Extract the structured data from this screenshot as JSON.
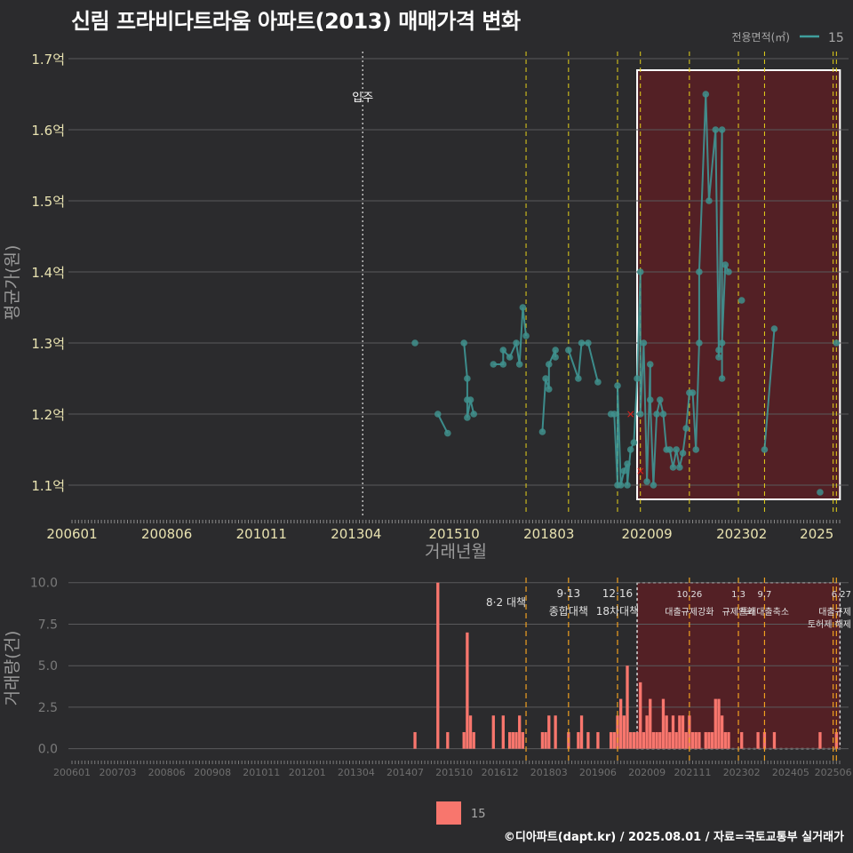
{
  "title": "신림 프라비다트라움 아파트(2013) 매매가격 변화",
  "footer": "©디아파트(dapt.kr) / 2025.08.01 / 자료=국토교통부 실거래가",
  "colors": {
    "background": "#2b2b2d",
    "grid": "#5a5a5c",
    "line": "#3f9e9c",
    "point": "#3f8f8c",
    "bar": "#f8766d",
    "highlight_fill": "#5a1f24",
    "event_line": "#e6d21a",
    "event_line_bottom": "#f0a020",
    "move_in_line": "#bdbdbd",
    "text_light": "#f2f2f2",
    "tick_label": "#e8e2b0",
    "axis_title": "#9a9a9a",
    "cancel_mark": "#e0201a"
  },
  "legend_top": {
    "title": "전용면적(㎡)",
    "label": "15"
  },
  "legend_bottom": {
    "label": "15"
  },
  "chart_data": [
    {
      "type": "line",
      "xlabel": "거래년월",
      "ylabel": "평균가(원)",
      "x_ticks": [
        "200601",
        "200806",
        "201011",
        "201304",
        "201510",
        "201803",
        "202009",
        "202302",
        "2025"
      ],
      "y_ticks": [
        "1.1억",
        "1.2억",
        "1.3억",
        "1.4억",
        "1.5억",
        "1.6억",
        "1.7억"
      ],
      "ylim": [
        1.06,
        1.71
      ],
      "unit": "억",
      "annotation": "입주",
      "annotation_date": "2013.06",
      "highlight_range": [
        "2020.06",
        "2025.07"
      ],
      "event_dates": [
        "2017.08",
        "2018.09",
        "2019.12",
        "2020.07",
        "2021.10",
        "2023.01",
        "2023.09",
        "2025.06",
        "2025.07"
      ],
      "series": [
        {
          "name": "15",
          "values": [
            {
              "x": "2014.10",
              "y": 1.3
            },
            {
              "x": "2015.05",
              "y": 1.2
            },
            {
              "x": "2015.08",
              "y": 1.173
            },
            {
              "x": "2016.01",
              "y": 1.3
            },
            {
              "x": "2016.02",
              "y": 1.25
            },
            {
              "x": "2016.02",
              "y": 1.22
            },
            {
              "x": "2016.02",
              "y": 1.195
            },
            {
              "x": "2016.03",
              "y": 1.22
            },
            {
              "x": "2016.04",
              "y": 1.2
            },
            {
              "x": "2016.10",
              "y": 1.27
            },
            {
              "x": "2017.01",
              "y": 1.27
            },
            {
              "x": "2017.01",
              "y": 1.29
            },
            {
              "x": "2017.03",
              "y": 1.28
            },
            {
              "x": "2017.05",
              "y": 1.3
            },
            {
              "x": "2017.06",
              "y": 1.27
            },
            {
              "x": "2017.07",
              "y": 1.35
            },
            {
              "x": "2017.08",
              "y": 1.31
            },
            {
              "x": "2018.01",
              "y": 1.175
            },
            {
              "x": "2018.02",
              "y": 1.25
            },
            {
              "x": "2018.03",
              "y": 1.235
            },
            {
              "x": "2018.03",
              "y": 1.27
            },
            {
              "x": "2018.05",
              "y": 1.29
            },
            {
              "x": "2018.05",
              "y": 1.28
            },
            {
              "x": "2018.09",
              "y": 1.29
            },
            {
              "x": "2018.12",
              "y": 1.25
            },
            {
              "x": "2019.01",
              "y": 1.3
            },
            {
              "x": "2019.03",
              "y": 1.3
            },
            {
              "x": "2019.06",
              "y": 1.245
            },
            {
              "x": "2019.10",
              "y": 1.2
            },
            {
              "x": "2019.11",
              "y": 1.2
            },
            {
              "x": "2019.12",
              "y": 1.1
            },
            {
              "x": "2019.12",
              "y": 1.24
            },
            {
              "x": "2020.01",
              "y": 1.1
            },
            {
              "x": "2020.02",
              "y": 1.12
            },
            {
              "x": "2020.03",
              "y": 1.13
            },
            {
              "x": "2020.03",
              "y": 1.1
            },
            {
              "x": "2020.04",
              "y": 1.15
            },
            {
              "x": "2020.05",
              "y": 1.16
            },
            {
              "x": "2020.06",
              "y": 1.25
            },
            {
              "x": "2020.07",
              "y": 1.4
            },
            {
              "x": "2020.07",
              "y": 1.2
            },
            {
              "x": "2020.08",
              "y": 1.3
            },
            {
              "x": "2020.09",
              "y": 1.105
            },
            {
              "x": "2020.10",
              "y": 1.27
            },
            {
              "x": "2020.10",
              "y": 1.22
            },
            {
              "x": "2020.11",
              "y": 1.1
            },
            {
              "x": "2020.12",
              "y": 1.2
            },
            {
              "x": "2021.01",
              "y": 1.22
            },
            {
              "x": "2021.02",
              "y": 1.2
            },
            {
              "x": "2021.03",
              "y": 1.15
            },
            {
              "x": "2021.04",
              "y": 1.15
            },
            {
              "x": "2021.05",
              "y": 1.125
            },
            {
              "x": "2021.06",
              "y": 1.15
            },
            {
              "x": "2021.07",
              "y": 1.125
            },
            {
              "x": "2021.08",
              "y": 1.145
            },
            {
              "x": "2021.09",
              "y": 1.18
            },
            {
              "x": "2021.10",
              "y": 1.23
            },
            {
              "x": "2021.11",
              "y": 1.23
            },
            {
              "x": "2021.12",
              "y": 1.15
            },
            {
              "x": "2022.01",
              "y": 1.3
            },
            {
              "x": "2022.01",
              "y": 1.4
            },
            {
              "x": "2022.03",
              "y": 1.65
            },
            {
              "x": "2022.04",
              "y": 1.5
            },
            {
              "x": "2022.06",
              "y": 1.6
            },
            {
              "x": "2022.07",
              "y": 1.28
            },
            {
              "x": "2022.07",
              "y": 1.29
            },
            {
              "x": "2022.08",
              "y": 1.6
            },
            {
              "x": "2022.08",
              "y": 1.25
            },
            {
              "x": "2022.08",
              "y": 1.3
            },
            {
              "x": "2022.09",
              "y": 1.41
            },
            {
              "x": "2022.10",
              "y": 1.4
            },
            {
              "x": "2023.02",
              "y": 1.36
            },
            {
              "x": "2023.09",
              "y": 1.15
            },
            {
              "x": "2023.12",
              "y": 1.32
            },
            {
              "x": "2025.02",
              "y": 1.09
            },
            {
              "x": "2025.07",
              "y": 1.3
            }
          ]
        }
      ],
      "cancelled": [
        {
          "x": "2020.04",
          "y": 1.2
        },
        {
          "x": "2020.07",
          "y": 1.12
        }
      ]
    },
    {
      "type": "bar",
      "xlabel": "",
      "ylabel": "거래량(건)",
      "x_ticks": [
        "200601",
        "200703",
        "200806",
        "200908",
        "201011",
        "201201",
        "201304",
        "201407",
        "201510",
        "201612",
        "201803",
        "201906",
        "202009",
        "202111",
        "202302",
        "202405",
        "202506"
      ],
      "y_ticks": [
        "0.0",
        "2.5",
        "5.0",
        "7.5",
        "10.0"
      ],
      "ylim": [
        -0.5,
        10.2
      ],
      "events": [
        {
          "date": "2017.08",
          "label": "8·2 대책"
        },
        {
          "date": "2018.09",
          "label": "9·13\n종합대책"
        },
        {
          "date": "2019.12",
          "label": "12·16\n18차대책"
        },
        {
          "date": "2021.10",
          "label": "10.26\n대출규제강화"
        },
        {
          "date": "2023.01",
          "label": "1.3\n규제완화"
        },
        {
          "date": "2023.09",
          "label": "9.7\n특례대출축소"
        },
        {
          "date": "2025.06",
          "label": "6.27\n대출규제"
        },
        {
          "date": "2025.07",
          "label": "토허제 해제"
        }
      ],
      "series": [
        {
          "name": "15",
          "values": [
            {
              "x": "2014.10",
              "y": 1
            },
            {
              "x": "2015.05",
              "y": 10
            },
            {
              "x": "2015.08",
              "y": 1
            },
            {
              "x": "2016.01",
              "y": 1
            },
            {
              "x": "2016.02",
              "y": 7
            },
            {
              "x": "2016.03",
              "y": 2
            },
            {
              "x": "2016.04",
              "y": 1
            },
            {
              "x": "2016.10",
              "y": 2
            },
            {
              "x": "2017.01",
              "y": 2
            },
            {
              "x": "2017.03",
              "y": 1
            },
            {
              "x": "2017.04",
              "y": 1
            },
            {
              "x": "2017.05",
              "y": 1
            },
            {
              "x": "2017.06",
              "y": 2
            },
            {
              "x": "2017.07",
              "y": 1
            },
            {
              "x": "2018.01",
              "y": 1
            },
            {
              "x": "2018.02",
              "y": 1
            },
            {
              "x": "2018.03",
              "y": 2
            },
            {
              "x": "2018.05",
              "y": 2
            },
            {
              "x": "2018.09",
              "y": 1
            },
            {
              "x": "2018.12",
              "y": 1
            },
            {
              "x": "2019.01",
              "y": 2
            },
            {
              "x": "2019.03",
              "y": 1
            },
            {
              "x": "2019.06",
              "y": 1
            },
            {
              "x": "2019.10",
              "y": 1
            },
            {
              "x": "2019.11",
              "y": 1
            },
            {
              "x": "2019.12",
              "y": 2
            },
            {
              "x": "2020.01",
              "y": 3
            },
            {
              "x": "2020.02",
              "y": 2
            },
            {
              "x": "2020.03",
              "y": 5
            },
            {
              "x": "2020.04",
              "y": 1
            },
            {
              "x": "2020.05",
              "y": 1
            },
            {
              "x": "2020.06",
              "y": 1
            },
            {
              "x": "2020.07",
              "y": 4
            },
            {
              "x": "2020.08",
              "y": 1
            },
            {
              "x": "2020.09",
              "y": 2
            },
            {
              "x": "2020.10",
              "y": 3
            },
            {
              "x": "2020.11",
              "y": 1
            },
            {
              "x": "2020.12",
              "y": 1
            },
            {
              "x": "2021.01",
              "y": 1
            },
            {
              "x": "2021.02",
              "y": 3
            },
            {
              "x": "2021.03",
              "y": 2
            },
            {
              "x": "2021.04",
              "y": 1
            },
            {
              "x": "2021.05",
              "y": 2
            },
            {
              "x": "2021.06",
              "y": 1
            },
            {
              "x": "2021.07",
              "y": 2
            },
            {
              "x": "2021.08",
              "y": 2
            },
            {
              "x": "2021.09",
              "y": 1
            },
            {
              "x": "2021.10",
              "y": 2
            },
            {
              "x": "2021.11",
              "y": 1
            },
            {
              "x": "2021.12",
              "y": 1
            },
            {
              "x": "2022.01",
              "y": 1
            },
            {
              "x": "2022.03",
              "y": 1
            },
            {
              "x": "2022.04",
              "y": 1
            },
            {
              "x": "2022.05",
              "y": 1
            },
            {
              "x": "2022.06",
              "y": 3
            },
            {
              "x": "2022.07",
              "y": 3
            },
            {
              "x": "2022.08",
              "y": 2
            },
            {
              "x": "2022.09",
              "y": 1
            },
            {
              "x": "2022.10",
              "y": 1
            },
            {
              "x": "2023.02",
              "y": 1
            },
            {
              "x": "2023.07",
              "y": 1
            },
            {
              "x": "2023.09",
              "y": 1
            },
            {
              "x": "2023.12",
              "y": 1
            },
            {
              "x": "2025.02",
              "y": 1
            },
            {
              "x": "2025.07",
              "y": 1
            }
          ]
        }
      ]
    }
  ]
}
